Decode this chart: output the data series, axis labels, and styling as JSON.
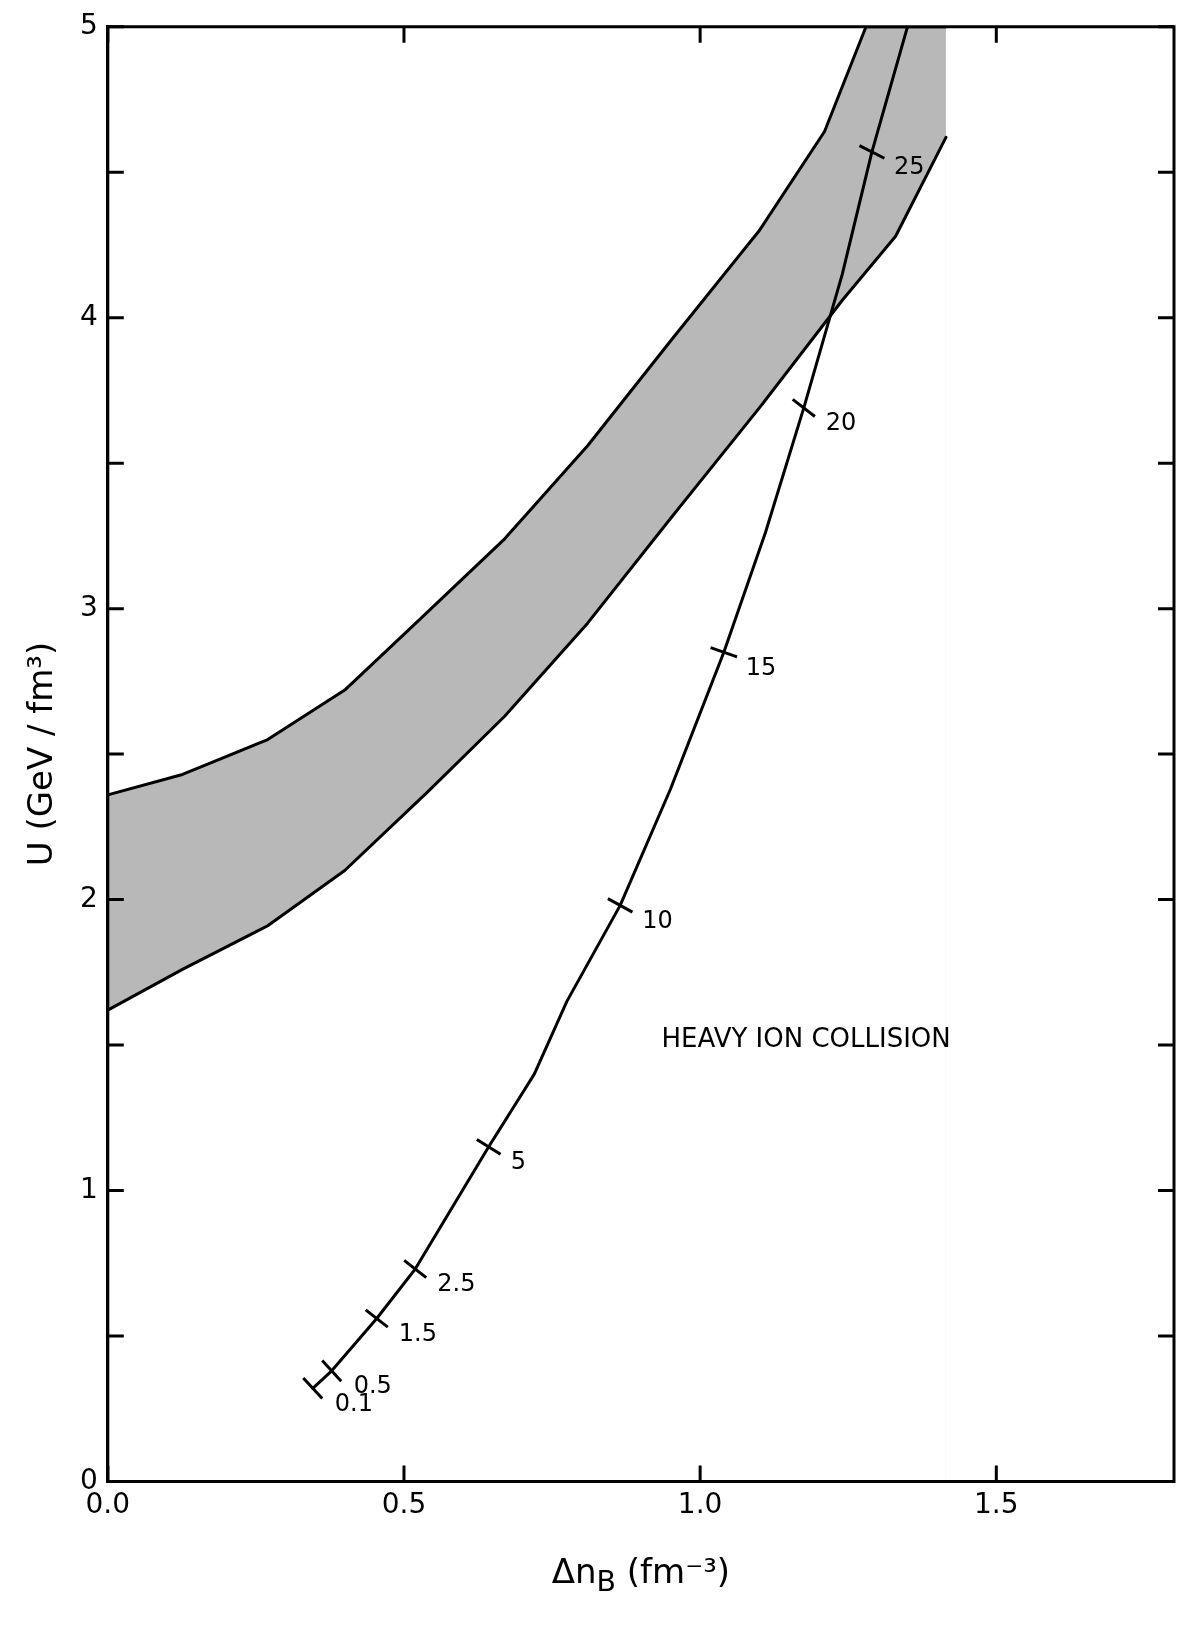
{
  "chart_data": {
    "type": "line",
    "xlabel": "Δn$_{B}$ (fm⁻³)",
    "ylabel": "U (GeV / fm³)",
    "xlim": [
      0,
      1.8
    ],
    "xticks": [
      {
        "value": 0,
        "label": "0.0"
      },
      {
        "value": 0.5,
        "label": "0.5"
      },
      {
        "value": 1,
        "label": "1.0"
      },
      {
        "value": 1.5,
        "label": "1.5"
      }
    ],
    "ylim": [
      0,
      5
    ],
    "yticks": [
      0,
      {
        "value": 0.5,
        "label": null
      },
      1,
      {
        "value": 1.5,
        "label": null
      },
      2,
      {
        "value": 2.5,
        "label": null
      },
      3,
      {
        "value": 3.5,
        "label": null
      },
      4,
      {
        "value": 4.5,
        "label": null
      },
      5
    ],
    "grid": false,
    "series": [
      {
        "type": "area",
        "color": "#000000",
        "x": [
          0,
          0.126,
          0.27,
          0.4,
          0.52,
          0.67,
          0.81,
          0.95,
          1.1,
          1.21,
          1.28,
          1.415
        ],
        "values": [
          2.36,
          2.43,
          2.55,
          2.72,
          2.95,
          3.24,
          3.56,
          3.92,
          4.3,
          4.64,
          5.0,
          5.0
        ]
      },
      {
        "type": "area",
        "color": "#000000",
        "x": [
          0,
          0.126,
          0.27,
          0.4,
          0.54,
          0.67,
          0.81,
          0.95,
          1.1,
          1.24,
          1.33,
          1.415
        ],
        "values": [
          1.62,
          1.76,
          1.91,
          2.1,
          2.37,
          2.63,
          2.95,
          3.31,
          3.69,
          4.06,
          4.28,
          4.62
        ]
      },
      {
        "type": "line",
        "color": "#000000",
        "x": [
          0.346,
          0.378,
          0.454,
          0.519,
          0.643,
          0.72,
          0.775,
          0.865,
          0.95,
          1.04,
          1.11,
          1.175,
          1.24,
          1.29,
          1.35
        ],
        "values": [
          0.32,
          0.38,
          0.56,
          0.73,
          1.15,
          1.4,
          1.65,
          1.98,
          2.38,
          2.85,
          3.26,
          3.69,
          4.15,
          4.57,
          5.0
        ]
      }
    ],
    "annotations": [
      "HEAVY ION COLLISION",
      {
        "text": "0.1",
        "x": 0.346,
        "y": 0.32
      },
      {
        "text": "0.5",
        "x": 0.378,
        "y": 0.38
      },
      {
        "text": "1.5",
        "x": 0.454,
        "y": 0.56
      },
      {
        "text": "2.5",
        "x": 0.519,
        "y": 0.73
      },
      {
        "text": "5",
        "x": 0.643,
        "y": 1.15
      },
      {
        "text": "10",
        "x": 0.865,
        "y": 1.98
      },
      {
        "text": "15",
        "x": 1.04,
        "y": 2.85
      },
      {
        "text": "20",
        "x": 1.175,
        "y": 3.69
      },
      {
        "text": "25",
        "x": 1.29,
        "y": 4.57
      }
    ]
  }
}
